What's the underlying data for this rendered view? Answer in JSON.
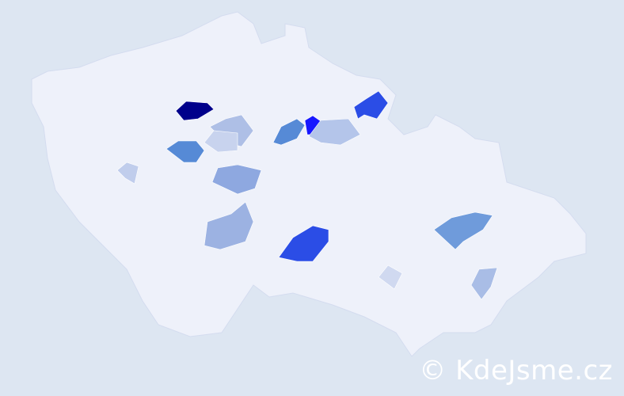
{
  "map": {
    "country_fill": "#eef1fa",
    "border_color": "#d4dcef",
    "background": "#dde6f2",
    "regions": [
      {
        "color": "#00008b"
      },
      {
        "color": "#1717ff"
      },
      {
        "color": "#2b4de6"
      },
      {
        "color": "#2b4de6"
      },
      {
        "color": "#568ad6"
      },
      {
        "color": "#568ad6"
      },
      {
        "color": "#6f9bdb"
      },
      {
        "color": "#8ea8e0"
      },
      {
        "color": "#9cb2e2"
      },
      {
        "color": "#a9bde6"
      },
      {
        "color": "#b4c5ea"
      },
      {
        "color": "#aebfe6"
      },
      {
        "color": "#c8d3ee"
      },
      {
        "color": "#c0cdec"
      },
      {
        "color": "#d0d9f0"
      }
    ]
  },
  "watermark": "© KdeJsme.cz"
}
